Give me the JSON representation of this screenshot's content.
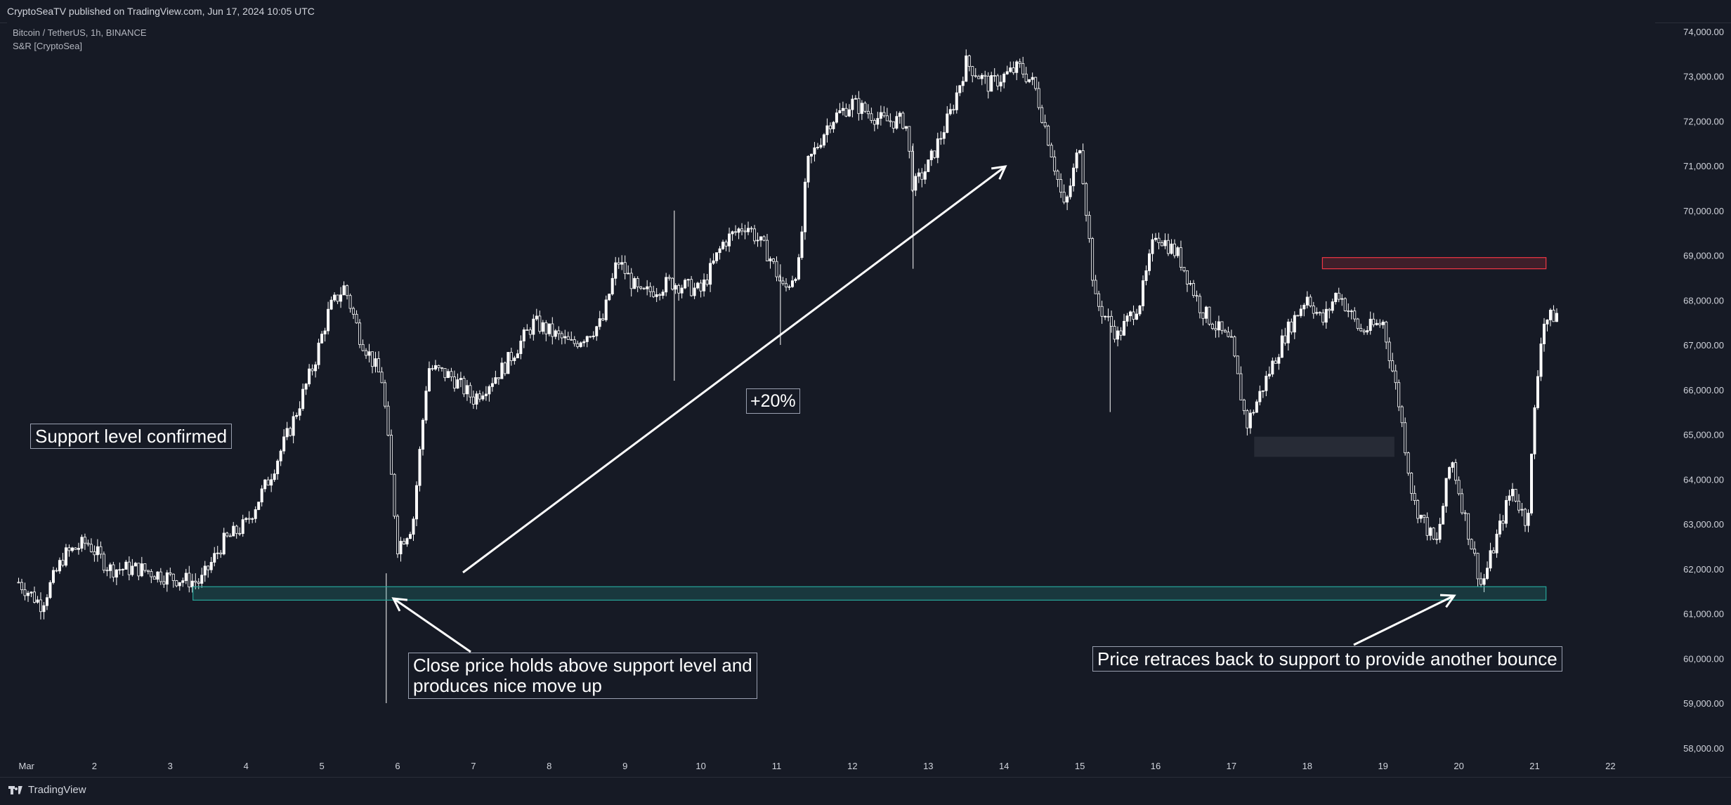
{
  "header": {
    "published": "CryptoSeaTV published on TradingView.com, Jun 17, 2024 10:05 UTC"
  },
  "symbol": {
    "description": "Bitcoin / TetherUS, 1h, BINANCE",
    "indicator": "S&R [CryptoSea]"
  },
  "footer": {
    "brand": "TradingView"
  },
  "annotations": {
    "support": "Support level confirmed",
    "percent": "+20%",
    "close_line1": "Close price holds above support level and",
    "close_line2": "produces nice move up",
    "retrace": "Price retraces back to support to provide another bounce"
  },
  "colors": {
    "background": "#161a25",
    "candle": "#ffffff",
    "support_zone": "#26a69a",
    "resistance_zone": "#f23645",
    "gray_zone": "#363a45"
  },
  "chart_data": {
    "type": "candlestick",
    "series_name": "Bitcoin / TetherUS",
    "interval": "1h",
    "exchange": "BINANCE",
    "x_ticks": [
      "Mar",
      "2",
      "3",
      "4",
      "5",
      "6",
      "7",
      "8",
      "9",
      "10",
      "11",
      "12",
      "13",
      "14",
      "15",
      "16",
      "17",
      "18",
      "19",
      "20",
      "21",
      "22"
    ],
    "y_ticks": [
      58000,
      59000,
      60000,
      61000,
      62000,
      63000,
      64000,
      65000,
      66000,
      67000,
      68000,
      69000,
      70000,
      71000,
      72000,
      73000,
      74000
    ],
    "y_tick_labels": [
      "58,000.00",
      "59,000.00",
      "60,000.00",
      "61,000.00",
      "62,000.00",
      "63,000.00",
      "64,000.00",
      "65,000.00",
      "66,000.00",
      "67,000.00",
      "68,000.00",
      "69,000.00",
      "70,000.00",
      "71,000.00",
      "72,000.00",
      "73,000.00",
      "74,000.00"
    ],
    "ylim": [
      57600,
      74400
    ],
    "xlim_days": [
      0.9,
      23.2
    ],
    "approx_close_path": [
      {
        "day": 1.0,
        "price": 61700
      },
      {
        "day": 1.3,
        "price": 61200
      },
      {
        "day": 1.6,
        "price": 62300
      },
      {
        "day": 1.9,
        "price": 62600
      },
      {
        "day": 2.2,
        "price": 62000
      },
      {
        "day": 2.6,
        "price": 62000
      },
      {
        "day": 3.0,
        "price": 61800
      },
      {
        "day": 3.4,
        "price": 61700
      },
      {
        "day": 3.7,
        "price": 62600
      },
      {
        "day": 4.0,
        "price": 63000
      },
      {
        "day": 4.3,
        "price": 64000
      },
      {
        "day": 4.6,
        "price": 65200
      },
      {
        "day": 4.9,
        "price": 66600
      },
      {
        "day": 5.1,
        "price": 67800
      },
      {
        "day": 5.3,
        "price": 68300
      },
      {
        "day": 5.5,
        "price": 67200
      },
      {
        "day": 5.8,
        "price": 66200
      },
      {
        "day": 6.0,
        "price": 62500
      },
      {
        "day": 6.2,
        "price": 63000
      },
      {
        "day": 6.4,
        "price": 66500
      },
      {
        "day": 6.7,
        "price": 66300
      },
      {
        "day": 7.0,
        "price": 65800
      },
      {
        "day": 7.4,
        "price": 66500
      },
      {
        "day": 7.8,
        "price": 67500
      },
      {
        "day": 8.3,
        "price": 67000
      },
      {
        "day": 8.7,
        "price": 67500
      },
      {
        "day": 8.9,
        "price": 68900
      },
      {
        "day": 9.2,
        "price": 68100
      },
      {
        "day": 9.6,
        "price": 68400
      },
      {
        "day": 10.0,
        "price": 68200
      },
      {
        "day": 10.3,
        "price": 69300
      },
      {
        "day": 10.6,
        "price": 69700
      },
      {
        "day": 10.9,
        "price": 69000
      },
      {
        "day": 11.1,
        "price": 68200
      },
      {
        "day": 11.3,
        "price": 68800
      },
      {
        "day": 11.4,
        "price": 71000
      },
      {
        "day": 11.7,
        "price": 72000
      },
      {
        "day": 12.0,
        "price": 72400
      },
      {
        "day": 12.4,
        "price": 72000
      },
      {
        "day": 12.7,
        "price": 72000
      },
      {
        "day": 12.8,
        "price": 70500
      },
      {
        "day": 13.0,
        "price": 71000
      },
      {
        "day": 13.3,
        "price": 72200
      },
      {
        "day": 13.5,
        "price": 73300
      },
      {
        "day": 13.8,
        "price": 72800
      },
      {
        "day": 14.2,
        "price": 73200
      },
      {
        "day": 14.4,
        "price": 72800
      },
      {
        "day": 14.6,
        "price": 71500
      },
      {
        "day": 14.8,
        "price": 70000
      },
      {
        "day": 15.0,
        "price": 71500
      },
      {
        "day": 15.2,
        "price": 68000
      },
      {
        "day": 15.5,
        "price": 67200
      },
      {
        "day": 15.8,
        "price": 68000
      },
      {
        "day": 16.0,
        "price": 69500
      },
      {
        "day": 16.3,
        "price": 69000
      },
      {
        "day": 16.6,
        "price": 67800
      },
      {
        "day": 17.0,
        "price": 67000
      },
      {
        "day": 17.2,
        "price": 65200
      },
      {
        "day": 17.4,
        "price": 66000
      },
      {
        "day": 17.7,
        "price": 67200
      },
      {
        "day": 18.0,
        "price": 68100
      },
      {
        "day": 18.2,
        "price": 67500
      },
      {
        "day": 18.4,
        "price": 68200
      },
      {
        "day": 18.7,
        "price": 67300
      },
      {
        "day": 19.0,
        "price": 67500
      },
      {
        "day": 19.2,
        "price": 65800
      },
      {
        "day": 19.4,
        "price": 63500
      },
      {
        "day": 19.7,
        "price": 62500
      },
      {
        "day": 19.9,
        "price": 64500
      },
      {
        "day": 20.1,
        "price": 63000
      },
      {
        "day": 20.3,
        "price": 61600
      },
      {
        "day": 20.5,
        "price": 62700
      },
      {
        "day": 20.7,
        "price": 63800
      },
      {
        "day": 20.9,
        "price": 63000
      },
      {
        "day": 21.0,
        "price": 65500
      },
      {
        "day": 21.1,
        "price": 67500
      },
      {
        "day": 21.3,
        "price": 67700
      }
    ],
    "zones": [
      {
        "kind": "support",
        "day_start": 3.3,
        "day_end": 21.15,
        "low": 61300,
        "high": 61600
      },
      {
        "kind": "resistance",
        "day_start": 18.2,
        "day_end": 21.15,
        "low": 68700,
        "high": 68950
      },
      {
        "kind": "neutral",
        "day_start": 17.3,
        "day_end": 19.15,
        "low": 64500,
        "high": 64950
      }
    ]
  }
}
